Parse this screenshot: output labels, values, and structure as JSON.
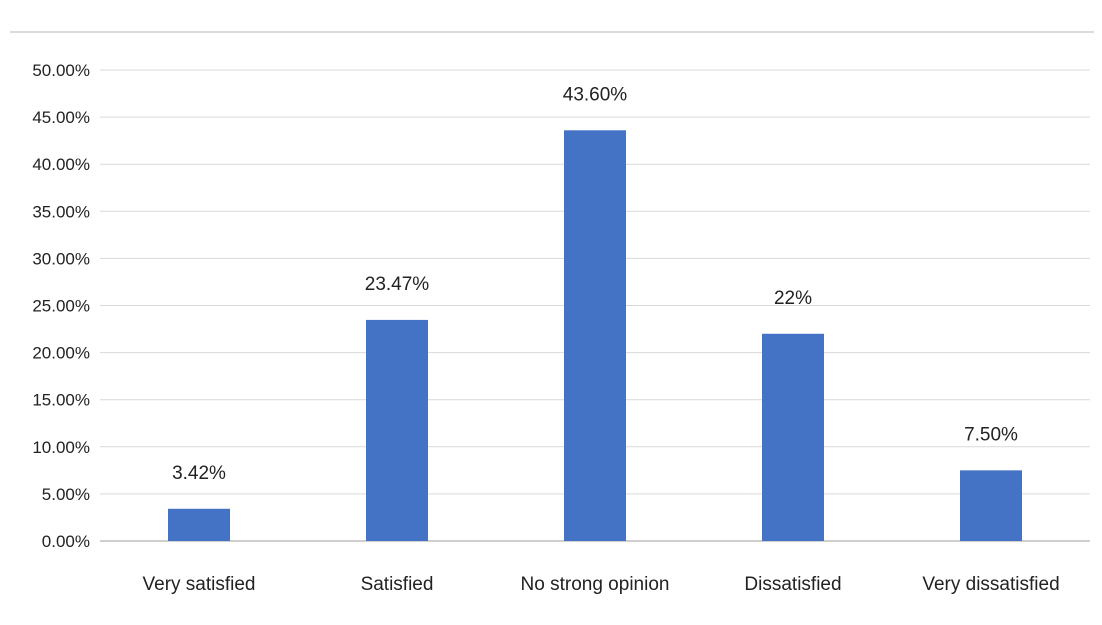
{
  "chart_data": {
    "type": "bar",
    "categories": [
      "Very satisfied",
      "Satisfied",
      "No strong opinion",
      "Dissatisfied",
      "Very  dissatisfied"
    ],
    "values": [
      3.42,
      23.47,
      43.6,
      22,
      7.5
    ],
    "data_labels": [
      "3.42%",
      "23.47%",
      "43.60%",
      "22%",
      "7.50%"
    ],
    "yticks": [
      "0.00%",
      "5.00%",
      "10.00%",
      "15.00%",
      "20.00%",
      "25.00%",
      "30.00%",
      "35.00%",
      "40.00%",
      "45.00%",
      "50.00%"
    ],
    "ylim": [
      0,
      50
    ],
    "title": "",
    "xlabel": "",
    "ylabel": "",
    "grid": true,
    "legend": "none",
    "colors": {
      "bar": "#4472C4",
      "grid": "#D9D9D9",
      "axis": "#BFBFBF",
      "top_rule": "#D0D0D0"
    }
  }
}
